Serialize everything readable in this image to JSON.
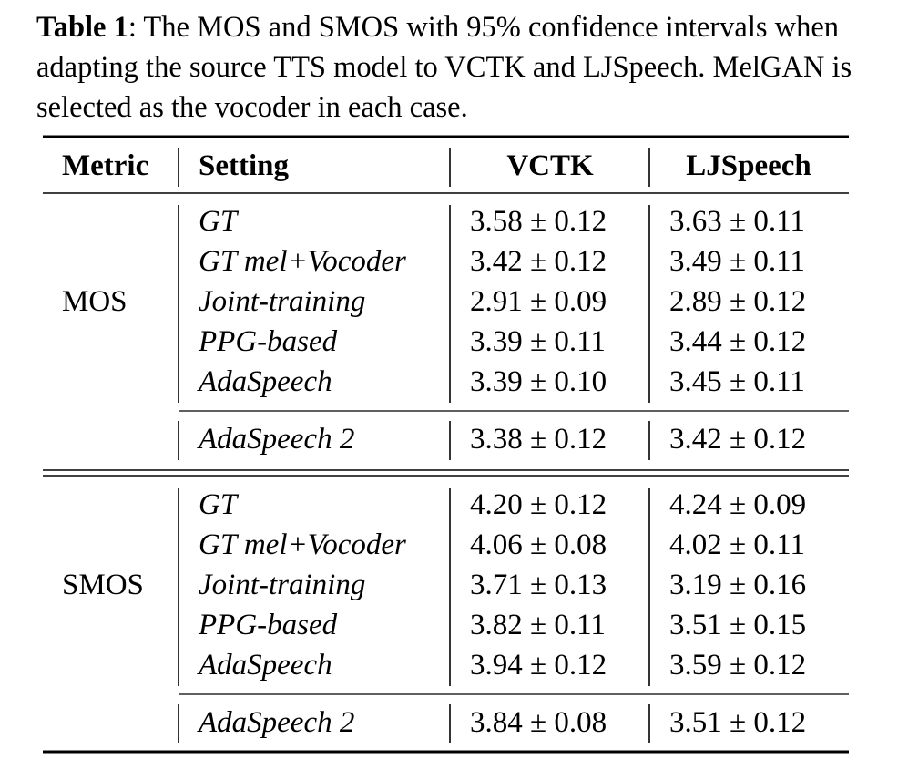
{
  "caption": {
    "label": "Table 1",
    "text": ": The MOS and SMOS with 95% confidence intervals when adapting the source TTS model to VCTK and LJSpeech. MelGAN is selected as the vocoder in each case."
  },
  "table": {
    "headers": [
      "Metric",
      "Setting",
      "VCTK",
      "LJSpeech"
    ],
    "groups": [
      {
        "metric": "MOS",
        "rows": [
          [
            "GT",
            "3.58 ± 0.12",
            "3.63 ± 0.11"
          ],
          [
            "GT mel+Vocoder",
            "3.42 ± 0.12",
            "3.49 ± 0.11"
          ],
          [
            "Joint-training",
            "2.91 ± 0.09",
            "2.89 ± 0.12"
          ],
          [
            "PPG-based",
            "3.39 ± 0.11",
            "3.44 ± 0.12"
          ],
          [
            "AdaSpeech",
            "3.39 ± 0.10",
            "3.45 ± 0.11"
          ]
        ],
        "proposed": [
          "AdaSpeech 2",
          "3.38 ± 0.12",
          "3.42 ± 0.12"
        ]
      },
      {
        "metric": "SMOS",
        "rows": [
          [
            "GT",
            "4.20 ± 0.12",
            "4.24 ± 0.09"
          ],
          [
            "GT mel+Vocoder",
            "4.06 ± 0.08",
            "4.02 ± 0.11"
          ],
          [
            "Joint-training",
            "3.71 ± 0.13",
            "3.19 ± 0.16"
          ],
          [
            "PPG-based",
            "3.82 ± 0.11",
            "3.51 ± 0.15"
          ],
          [
            "AdaSpeech",
            "3.94 ± 0.12",
            "3.59 ± 0.12"
          ]
        ],
        "proposed": [
          "AdaSpeech 2",
          "3.84 ± 0.08",
          "3.51 ± 0.12"
        ]
      }
    ]
  }
}
